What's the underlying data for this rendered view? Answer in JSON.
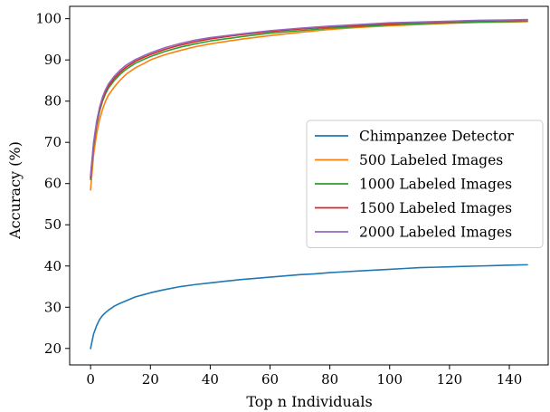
{
  "chart_data": {
    "type": "line",
    "xlabel": "Top n Individuals",
    "ylabel": "Accuracy (%)",
    "xlim": [
      -7,
      153
    ],
    "ylim": [
      16,
      103
    ],
    "x_ticks": [
      0,
      20,
      40,
      60,
      80,
      100,
      120,
      140
    ],
    "y_ticks": [
      20,
      30,
      40,
      50,
      60,
      70,
      80,
      90,
      100
    ],
    "grid": false,
    "legend_position": "center-right",
    "series": [
      {
        "name": "Chimpanzee Detector",
        "color": "#1f77b4",
        "x": [
          0,
          1,
          2,
          3,
          4,
          5,
          6,
          8,
          10,
          12,
          15,
          18,
          20,
          23,
          25,
          30,
          35,
          40,
          45,
          50,
          55,
          60,
          65,
          70,
          75,
          80,
          85,
          90,
          95,
          100,
          105,
          110,
          115,
          120,
          125,
          130,
          135,
          140,
          146
        ],
        "y": [
          20,
          23.5,
          25.5,
          27,
          28,
          28.7,
          29.3,
          30.3,
          31,
          31.6,
          32.5,
          33.1,
          33.5,
          34,
          34.3,
          35,
          35.5,
          35.9,
          36.3,
          36.7,
          37,
          37.3,
          37.6,
          37.9,
          38.1,
          38.4,
          38.6,
          38.8,
          39,
          39.2,
          39.4,
          39.6,
          39.7,
          39.8,
          39.9,
          40,
          40.1,
          40.2,
          40.3
        ]
      },
      {
        "name": "500 Labeled Images",
        "color": "#ff7f0e",
        "x": [
          0,
          1,
          2,
          3,
          4,
          5,
          6,
          8,
          10,
          12,
          15,
          18,
          20,
          25,
          30,
          35,
          40,
          50,
          60,
          70,
          80,
          90,
          100,
          110,
          120,
          130,
          140,
          146
        ],
        "y": [
          58.5,
          67,
          72,
          75.5,
          78,
          80,
          81.5,
          83.5,
          85.2,
          86.6,
          88.1,
          89.2,
          90,
          91.3,
          92.3,
          93.2,
          93.9,
          95,
          95.9,
          96.7,
          97.4,
          97.9,
          98.3,
          98.6,
          98.9,
          99.1,
          99.2,
          99.3
        ]
      },
      {
        "name": "1000 Labeled Images",
        "color": "#2ca02c",
        "x": [
          0,
          1,
          2,
          3,
          4,
          5,
          6,
          8,
          10,
          12,
          15,
          18,
          20,
          25,
          30,
          35,
          40,
          50,
          60,
          70,
          80,
          90,
          100,
          110,
          120,
          130,
          140,
          146
        ],
        "y": [
          61,
          69,
          74,
          77.5,
          80,
          81.8,
          83.2,
          85.1,
          86.6,
          87.8,
          89.2,
          90.2,
          90.8,
          92.1,
          93.1,
          93.9,
          94.6,
          95.6,
          96.5,
          97.1,
          97.7,
          98.1,
          98.5,
          98.8,
          99,
          99.2,
          99.3,
          99.4
        ]
      },
      {
        "name": "1500 Labeled Images",
        "color": "#d62728",
        "x": [
          0,
          1,
          2,
          3,
          4,
          5,
          6,
          8,
          10,
          12,
          15,
          18,
          20,
          25,
          30,
          35,
          40,
          50,
          60,
          70,
          80,
          90,
          100,
          110,
          120,
          130,
          140,
          146
        ],
        "y": [
          61.5,
          69.5,
          74.5,
          78,
          80.5,
          82.3,
          83.7,
          85.6,
          87.1,
          88.3,
          89.7,
          90.7,
          91.3,
          92.6,
          93.6,
          94.4,
          95.1,
          96.1,
          96.9,
          97.5,
          98,
          98.4,
          98.8,
          99.1,
          99.3,
          99.5,
          99.6,
          99.7
        ]
      },
      {
        "name": "2000 Labeled Images",
        "color": "#9467bd",
        "x": [
          0,
          1,
          2,
          3,
          4,
          5,
          6,
          8,
          10,
          12,
          15,
          18,
          20,
          25,
          30,
          35,
          40,
          50,
          60,
          70,
          80,
          90,
          100,
          110,
          120,
          130,
          140,
          146
        ],
        "y": [
          62,
          70,
          75,
          78.5,
          81,
          82.8,
          84.2,
          86.1,
          87.6,
          88.8,
          90.1,
          91.1,
          91.7,
          93,
          94,
          94.8,
          95.4,
          96.3,
          97.1,
          97.7,
          98.2,
          98.6,
          99,
          99.2,
          99.4,
          99.6,
          99.7,
          99.8
        ]
      }
    ]
  }
}
